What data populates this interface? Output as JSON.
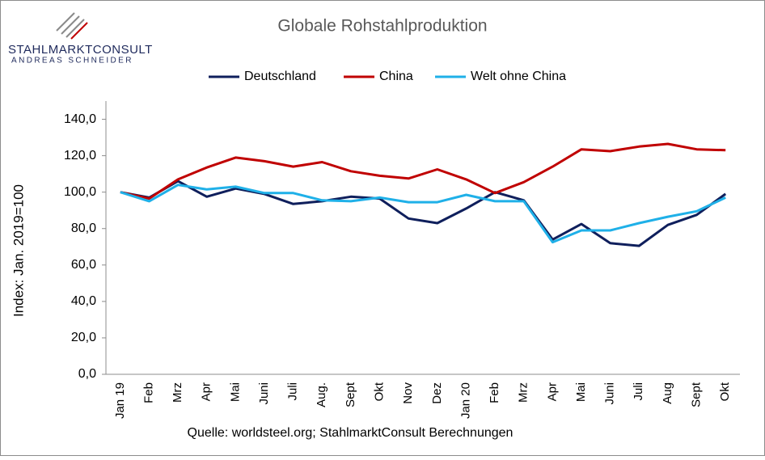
{
  "chart_data": {
    "type": "line",
    "title": "Globale Rohstahlproduktion",
    "logo": {
      "name": "STAHLMARKTCONSULT",
      "subname": "ANDREAS SCHNEIDER"
    },
    "source": "Quelle: worldsteel.org; StahlmarktConsult Berechnungen",
    "y_label": "Index: Jan. 2019=100",
    "categories": [
      "Jan 19",
      "Feb",
      "Mrz",
      "Apr",
      "Mai",
      "Juni",
      "Juli",
      "Aug.",
      "Sept",
      "Okt",
      "Nov",
      "Dez",
      "Jan 20",
      "Feb",
      "Mrz",
      "Apr",
      "Mai",
      "Juni",
      "Juli",
      "Aug",
      "Sept",
      "Okt"
    ],
    "series": [
      {
        "name": "Deutschland",
        "color": "#0f1f5c",
        "values": [
          100,
          97,
          106,
          97.5,
          102,
          99,
          93.5,
          95,
          97.5,
          96.5,
          85.5,
          83,
          91,
          100,
          95.5,
          74,
          82.5,
          72,
          70.5,
          82,
          87.5,
          99
        ]
      },
      {
        "name": "China",
        "color": "#c00000",
        "values": [
          100,
          96.5,
          107,
          113.5,
          119,
          117,
          114,
          116.5,
          111.5,
          109,
          107.5,
          112.5,
          107,
          99.5,
          105.5,
          114,
          123.5,
          122.5,
          125,
          126.5,
          123.5,
          123
        ]
      },
      {
        "name": "Welt ohne China",
        "color": "#1fb0e8",
        "values": [
          100,
          95,
          104,
          101.5,
          103,
          99.5,
          99.5,
          95.5,
          95,
          97,
          94.5,
          94.5,
          98.5,
          95,
          95,
          72.5,
          79,
          79,
          83,
          86.5,
          89.5,
          97
        ]
      }
    ],
    "ylim": [
      0,
      150
    ],
    "yticks": [
      {
        "value": 0,
        "label": "0,0"
      },
      {
        "value": 20,
        "label": "20,0"
      },
      {
        "value": 40,
        "label": "40,0"
      },
      {
        "value": 60,
        "label": "60,0"
      },
      {
        "value": 80,
        "label": "80,0"
      },
      {
        "value": 100,
        "label": "100,0"
      },
      {
        "value": 120,
        "label": "120,0"
      },
      {
        "value": 140,
        "label": "140,0"
      }
    ],
    "grid": false,
    "legend": "top"
  }
}
